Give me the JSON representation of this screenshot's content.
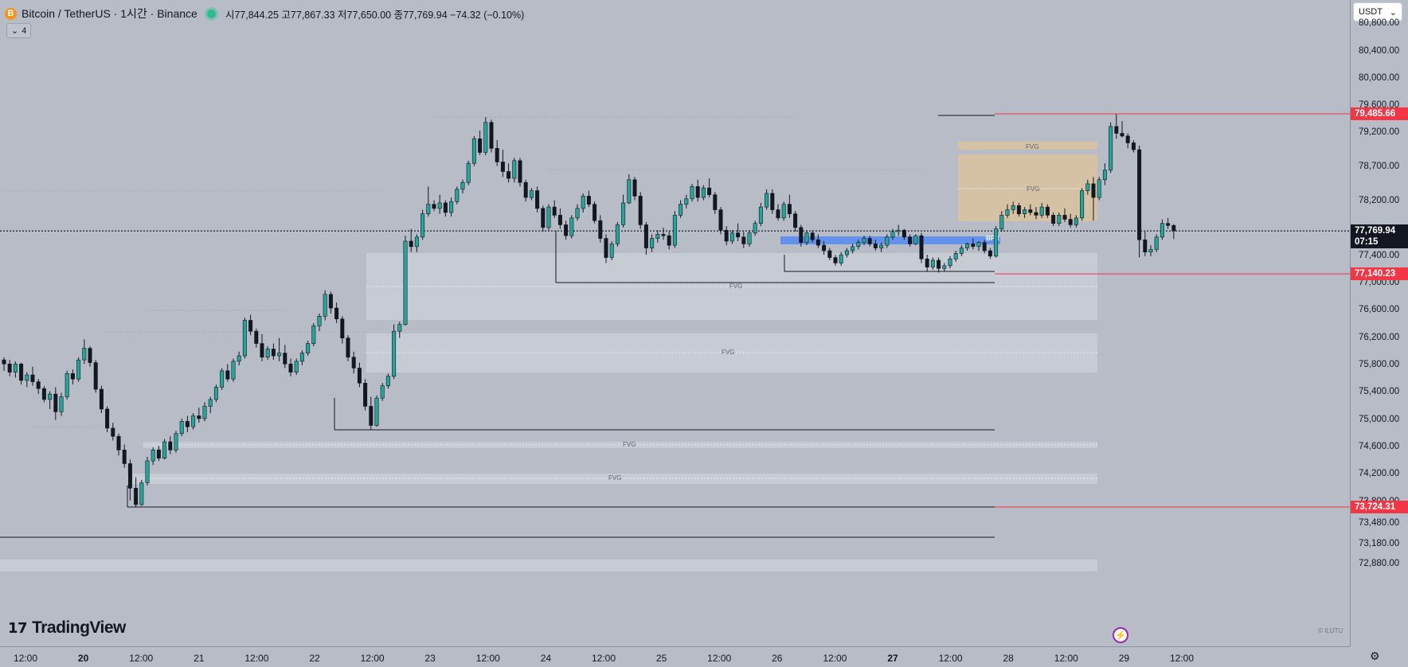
{
  "header": {
    "coin_icon": "B",
    "symbol": "Bitcoin / TetherUS · 1시간 · Binance",
    "ohlc": "시77,844.25 고77,867.33 저77,650.00 종77,769.94 −74.32 (−0.10%)"
  },
  "indicator_toggle": {
    "icon": "chevron-down-icon",
    "count": "4"
  },
  "currency_select": {
    "value": "USDT",
    "icon": "chevron-down-icon"
  },
  "price_axis": {
    "ticks": [
      "80,800.00",
      "80,400.00",
      "80,000.00",
      "79,600.00",
      "79,200.00",
      "78,700.00",
      "78,200.00",
      "77,400.00",
      "77,000.00",
      "76,600.00",
      "76,200.00",
      "75,800.00",
      "75,400.00",
      "75,000.00",
      "74,600.00",
      "74,200.00",
      "73,800.00",
      "73,480.00",
      "73,180.00",
      "72,880.00"
    ],
    "tags": [
      {
        "label": "79,485.66",
        "color": "#f23645"
      },
      {
        "label": "77,140.23",
        "color": "#f23645"
      },
      {
        "label": "73,724.31",
        "color": "#f23645"
      }
    ],
    "current_price": "77,769.94",
    "countdown": "07:15"
  },
  "time_axis": {
    "labels": [
      {
        "text": "12:00",
        "day": false
      },
      {
        "text": "20",
        "day": true
      },
      {
        "text": "12:00",
        "day": false
      },
      {
        "text": "21",
        "day": false
      },
      {
        "text": "12:00",
        "day": false
      },
      {
        "text": "22",
        "day": false
      },
      {
        "text": "12:00",
        "day": false
      },
      {
        "text": "23",
        "day": false
      },
      {
        "text": "12:00",
        "day": false
      },
      {
        "text": "24",
        "day": false
      },
      {
        "text": "12:00",
        "day": false
      },
      {
        "text": "25",
        "day": false
      },
      {
        "text": "12:00",
        "day": false
      },
      {
        "text": "26",
        "day": false
      },
      {
        "text": "12:00",
        "day": false
      },
      {
        "text": "27",
        "day": true
      },
      {
        "text": "12:00",
        "day": false
      },
      {
        "text": "28",
        "day": false
      },
      {
        "text": "12:00",
        "day": false
      },
      {
        "text": "29",
        "day": false
      },
      {
        "text": "12:00",
        "day": false
      }
    ]
  },
  "annotations": {
    "fvg_label": "FVG",
    "bpr_label": "BPR"
  },
  "logo": {
    "text": "TradingView",
    "icon": "tradingview-logo-icon"
  },
  "watermark": "© ILUTU",
  "settings_icon": "gear-icon",
  "bolt_icon": "lightning-icon",
  "colors": {
    "up": "#26a69a",
    "down": "#131722",
    "red_line": "#f23645",
    "fvg_box": "#d4d7de",
    "fvg_gold": "#e8c48a",
    "bpr": "#5b8cf0",
    "background": "#b8bcc7"
  },
  "chart_data": {
    "type": "candlestick",
    "title": "",
    "ylim": [
      72700,
      81000
    ],
    "current_price": 77769.94,
    "levels": [
      79485.66,
      77140.23,
      73724.31
    ],
    "candles": [
      [
        75880,
        75920,
        75720,
        75820
      ],
      [
        75820,
        75880,
        75640,
        75700
      ],
      [
        75700,
        75860,
        75620,
        75820
      ],
      [
        75820,
        75840,
        75520,
        75580
      ],
      [
        75580,
        75700,
        75480,
        75660
      ],
      [
        75660,
        75780,
        75500,
        75560
      ],
      [
        75560,
        75600,
        75380,
        75460
      ],
      [
        75460,
        75500,
        75260,
        75300
      ],
      [
        75300,
        75420,
        75160,
        75380
      ],
      [
        75380,
        75480,
        75000,
        75120
      ],
      [
        75120,
        75400,
        75060,
        75340
      ],
      [
        75340,
        75720,
        75300,
        75680
      ],
      [
        75680,
        75740,
        75520,
        75600
      ],
      [
        75600,
        75920,
        75560,
        75880
      ],
      [
        75880,
        76180,
        75820,
        76050
      ],
      [
        76050,
        76080,
        75780,
        75840
      ],
      [
        75840,
        75880,
        75400,
        75450
      ],
      [
        75450,
        75500,
        75100,
        75160
      ],
      [
        75160,
        75200,
        74820,
        74880
      ],
      [
        74880,
        74960,
        74700,
        74760
      ],
      [
        74760,
        74800,
        74480,
        74560
      ],
      [
        74560,
        74640,
        74300,
        74360
      ],
      [
        74360,
        74420,
        73820,
        74000
      ],
      [
        74000,
        74160,
        73720,
        73760
      ],
      [
        73760,
        74120,
        73740,
        74080
      ],
      [
        74080,
        74460,
        74040,
        74400
      ],
      [
        74400,
        74600,
        74340,
        74560
      ],
      [
        74560,
        74620,
        74400,
        74440
      ],
      [
        74440,
        74720,
        74420,
        74680
      ],
      [
        74680,
        74760,
        74500,
        74560
      ],
      [
        74560,
        74840,
        74520,
        74800
      ],
      [
        74800,
        75020,
        74760,
        74980
      ],
      [
        74980,
        75060,
        74820,
        74900
      ],
      [
        74900,
        75100,
        74860,
        75060
      ],
      [
        75060,
        75180,
        74960,
        75020
      ],
      [
        75020,
        75260,
        74980,
        75200
      ],
      [
        75200,
        75340,
        75100,
        75300
      ],
      [
        75300,
        75520,
        75260,
        75480
      ],
      [
        75480,
        75760,
        75440,
        75720
      ],
      [
        75720,
        75820,
        75560,
        75600
      ],
      [
        75600,
        75900,
        75560,
        75860
      ],
      [
        75860,
        76000,
        75800,
        75940
      ],
      [
        75940,
        76500,
        75900,
        76460
      ],
      [
        76460,
        76540,
        76240,
        76300
      ],
      [
        76300,
        76340,
        76060,
        76120
      ],
      [
        76120,
        76260,
        75860,
        75920
      ],
      [
        75920,
        76080,
        75880,
        76040
      ],
      [
        76040,
        76120,
        75880,
        75940
      ],
      [
        75940,
        76200,
        75860,
        75980
      ],
      [
        75980,
        76100,
        75760,
        75820
      ],
      [
        75820,
        75900,
        75640,
        75700
      ],
      [
        75700,
        75900,
        75660,
        75860
      ],
      [
        75860,
        76020,
        75800,
        75980
      ],
      [
        75980,
        76160,
        75940,
        76120
      ],
      [
        76120,
        76420,
        76080,
        76380
      ],
      [
        76380,
        76560,
        76300,
        76520
      ],
      [
        76520,
        76900,
        76460,
        76840
      ],
      [
        76840,
        76880,
        76560,
        76640
      ],
      [
        76640,
        76720,
        76420,
        76480
      ],
      [
        76480,
        76520,
        76120,
        76200
      ],
      [
        76200,
        76240,
        75860,
        75920
      ],
      [
        75920,
        76000,
        75680,
        75760
      ],
      [
        75760,
        75840,
        75480,
        75540
      ],
      [
        75540,
        75600,
        75140,
        75200
      ],
      [
        75200,
        75340,
        74860,
        74920
      ],
      [
        74920,
        75360,
        74900,
        75320
      ],
      [
        75320,
        75540,
        75280,
        75500
      ],
      [
        75500,
        75680,
        75460,
        75640
      ],
      [
        75640,
        76400,
        75600,
        76300
      ],
      [
        76300,
        76440,
        76200,
        76400
      ],
      [
        76400,
        77700,
        76380,
        77620
      ],
      [
        77620,
        77800,
        77460,
        77540
      ],
      [
        77540,
        77720,
        77460,
        77680
      ],
      [
        77680,
        78080,
        77640,
        78020
      ],
      [
        78020,
        78420,
        77980,
        78160
      ],
      [
        78160,
        78220,
        78060,
        78100
      ],
      [
        78100,
        78300,
        78020,
        78180
      ],
      [
        78180,
        78220,
        77980,
        78040
      ],
      [
        78040,
        78260,
        77980,
        78200
      ],
      [
        78200,
        78420,
        78160,
        78380
      ],
      [
        78380,
        78520,
        78320,
        78480
      ],
      [
        78480,
        78800,
        78440,
        78760
      ],
      [
        78760,
        79160,
        78720,
        79120
      ],
      [
        79120,
        79240,
        78880,
        78920
      ],
      [
        78920,
        79440,
        78880,
        79360
      ],
      [
        79360,
        79400,
        78920,
        78980
      ],
      [
        78980,
        79100,
        78720,
        78780
      ],
      [
        78780,
        78960,
        78560,
        78640
      ],
      [
        78640,
        78760,
        78480,
        78540
      ],
      [
        78540,
        78840,
        78480,
        78800
      ],
      [
        78800,
        78840,
        78420,
        78480
      ],
      [
        78480,
        78520,
        78200,
        78260
      ],
      [
        78260,
        78400,
        78220,
        78360
      ],
      [
        78360,
        78420,
        78040,
        78100
      ],
      [
        78100,
        78140,
        77760,
        77820
      ],
      [
        77820,
        78160,
        77780,
        78120
      ],
      [
        78120,
        78220,
        77960,
        78000
      ],
      [
        78000,
        78100,
        77800,
        77860
      ],
      [
        77860,
        77920,
        77640,
        77700
      ],
      [
        77700,
        78000,
        77660,
        77960
      ],
      [
        77960,
        78160,
        77920,
        78100
      ],
      [
        78100,
        78320,
        78040,
        78280
      ],
      [
        78280,
        78360,
        78120,
        78160
      ],
      [
        78160,
        78200,
        77880,
        77920
      ],
      [
        77920,
        78000,
        77600,
        77660
      ],
      [
        77660,
        77720,
        77300,
        77380
      ],
      [
        77380,
        77620,
        77340,
        77580
      ],
      [
        77580,
        77900,
        77540,
        77860
      ],
      [
        77860,
        78300,
        77820,
        78180
      ],
      [
        78180,
        78600,
        78160,
        78520
      ],
      [
        78520,
        78560,
        78220,
        78280
      ],
      [
        78280,
        78340,
        77800,
        77860
      ],
      [
        77860,
        77900,
        77420,
        77520
      ],
      [
        77520,
        77720,
        77460,
        77660
      ],
      [
        77660,
        77780,
        77600,
        77720
      ],
      [
        77720,
        77820,
        77640,
        77700
      ],
      [
        77700,
        77760,
        77500,
        77560
      ],
      [
        77560,
        78060,
        77520,
        78000
      ],
      [
        78000,
        78220,
        77960,
        78160
      ],
      [
        78160,
        78300,
        78100,
        78240
      ],
      [
        78240,
        78460,
        78200,
        78420
      ],
      [
        78420,
        78520,
        78200,
        78260
      ],
      [
        78260,
        78440,
        78220,
        78400
      ],
      [
        78400,
        78540,
        78260,
        78300
      ],
      [
        78300,
        78340,
        78020,
        78080
      ],
      [
        78080,
        78120,
        77720,
        77780
      ],
      [
        77780,
        77840,
        77560,
        77620
      ],
      [
        77620,
        77780,
        77580,
        77740
      ],
      [
        77740,
        77880,
        77620,
        77680
      ],
      [
        77680,
        77760,
        77520,
        77580
      ],
      [
        77580,
        77780,
        77540,
        77740
      ],
      [
        77740,
        77920,
        77700,
        77880
      ],
      [
        77880,
        78180,
        77840,
        78120
      ],
      [
        78120,
        78380,
        78080,
        78320
      ],
      [
        78320,
        78380,
        78020,
        78080
      ],
      [
        78080,
        78160,
        77920,
        77960
      ],
      [
        77960,
        78200,
        77920,
        78160
      ],
      [
        78160,
        78300,
        77960,
        78020
      ],
      [
        78020,
        78060,
        77760,
        77820
      ],
      [
        77820,
        77860,
        77540,
        77600
      ],
      [
        77600,
        77780,
        77560,
        77740
      ],
      [
        77740,
        77780,
        77600,
        77640
      ],
      [
        77640,
        77720,
        77520,
        77560
      ],
      [
        77560,
        77620,
        77420,
        77480
      ],
      [
        77480,
        77520,
        77340,
        77380
      ],
      [
        77380,
        77420,
        77260,
        77300
      ],
      [
        77300,
        77460,
        77260,
        77420
      ],
      [
        77420,
        77520,
        77380,
        77480
      ],
      [
        77480,
        77580,
        77440,
        77540
      ],
      [
        77540,
        77640,
        77500,
        77600
      ],
      [
        77600,
        77700,
        77560,
        77660
      ],
      [
        77660,
        77700,
        77540,
        77580
      ],
      [
        77580,
        77640,
        77480,
        77520
      ],
      [
        77520,
        77600,
        77460,
        77560
      ],
      [
        77560,
        77720,
        77520,
        77680
      ],
      [
        77680,
        77800,
        77640,
        77760
      ],
      [
        77760,
        77860,
        77700,
        77780
      ],
      [
        77780,
        77800,
        77640,
        77680
      ],
      [
        77680,
        77720,
        77540,
        77580
      ],
      [
        77580,
        77720,
        77560,
        77700
      ],
      [
        77700,
        77740,
        77300,
        77360
      ],
      [
        77360,
        77420,
        77180,
        77240
      ],
      [
        77240,
        77380,
        77200,
        77340
      ],
      [
        77340,
        77380,
        77160,
        77220
      ],
      [
        77220,
        77300,
        77180,
        77260
      ],
      [
        77260,
        77400,
        77220,
        77360
      ],
      [
        77360,
        77480,
        77320,
        77440
      ],
      [
        77440,
        77560,
        77400,
        77520
      ],
      [
        77520,
        77600,
        77480,
        77580
      ],
      [
        77580,
        77660,
        77500,
        77540
      ],
      [
        77540,
        77620,
        77480,
        77600
      ],
      [
        77600,
        77640,
        77440,
        77480
      ],
      [
        77480,
        77520,
        77360,
        77400
      ],
      [
        77400,
        77840,
        77380,
        77800
      ],
      [
        77800,
        78060,
        77760,
        78000
      ],
      [
        78000,
        78160,
        77960,
        78080
      ],
      [
        78080,
        78200,
        78020,
        78140
      ],
      [
        78140,
        78180,
        77980,
        78020
      ],
      [
        78020,
        78120,
        77960,
        78080
      ],
      [
        78080,
        78160,
        78000,
        78040
      ],
      [
        78040,
        78120,
        77940,
        78000
      ],
      [
        78000,
        78180,
        77960,
        78120
      ],
      [
        78120,
        78160,
        77960,
        78000
      ],
      [
        78000,
        78040,
        77840,
        77880
      ],
      [
        77880,
        78040,
        77840,
        78000
      ],
      [
        78000,
        78100,
        77900,
        77940
      ],
      [
        77940,
        78020,
        77820,
        77860
      ],
      [
        77860,
        78000,
        77820,
        77960
      ],
      [
        77960,
        78400,
        77920,
        78360
      ],
      [
        78360,
        78520,
        78300,
        78460
      ],
      [
        78460,
        78560,
        77920,
        78260
      ],
      [
        78260,
        78560,
        78220,
        78520
      ],
      [
        78520,
        78760,
        78440,
        78660
      ],
      [
        78660,
        79360,
        78620,
        79300
      ],
      [
        79300,
        79480,
        79120,
        79200
      ],
      [
        79200,
        79380,
        79140,
        79160
      ],
      [
        79160,
        79200,
        78980,
        79060
      ],
      [
        79060,
        79100,
        78920,
        78960
      ],
      [
        78960,
        79020,
        77380,
        77640
      ],
      [
        77640,
        77760,
        77400,
        77460
      ],
      [
        77460,
        77560,
        77400,
        77500
      ],
      [
        77500,
        77720,
        77460,
        77680
      ],
      [
        77680,
        77940,
        77640,
        77880
      ],
      [
        77880,
        77960,
        77800,
        77850
      ],
      [
        77850,
        77870,
        77650,
        77770
      ]
    ]
  }
}
